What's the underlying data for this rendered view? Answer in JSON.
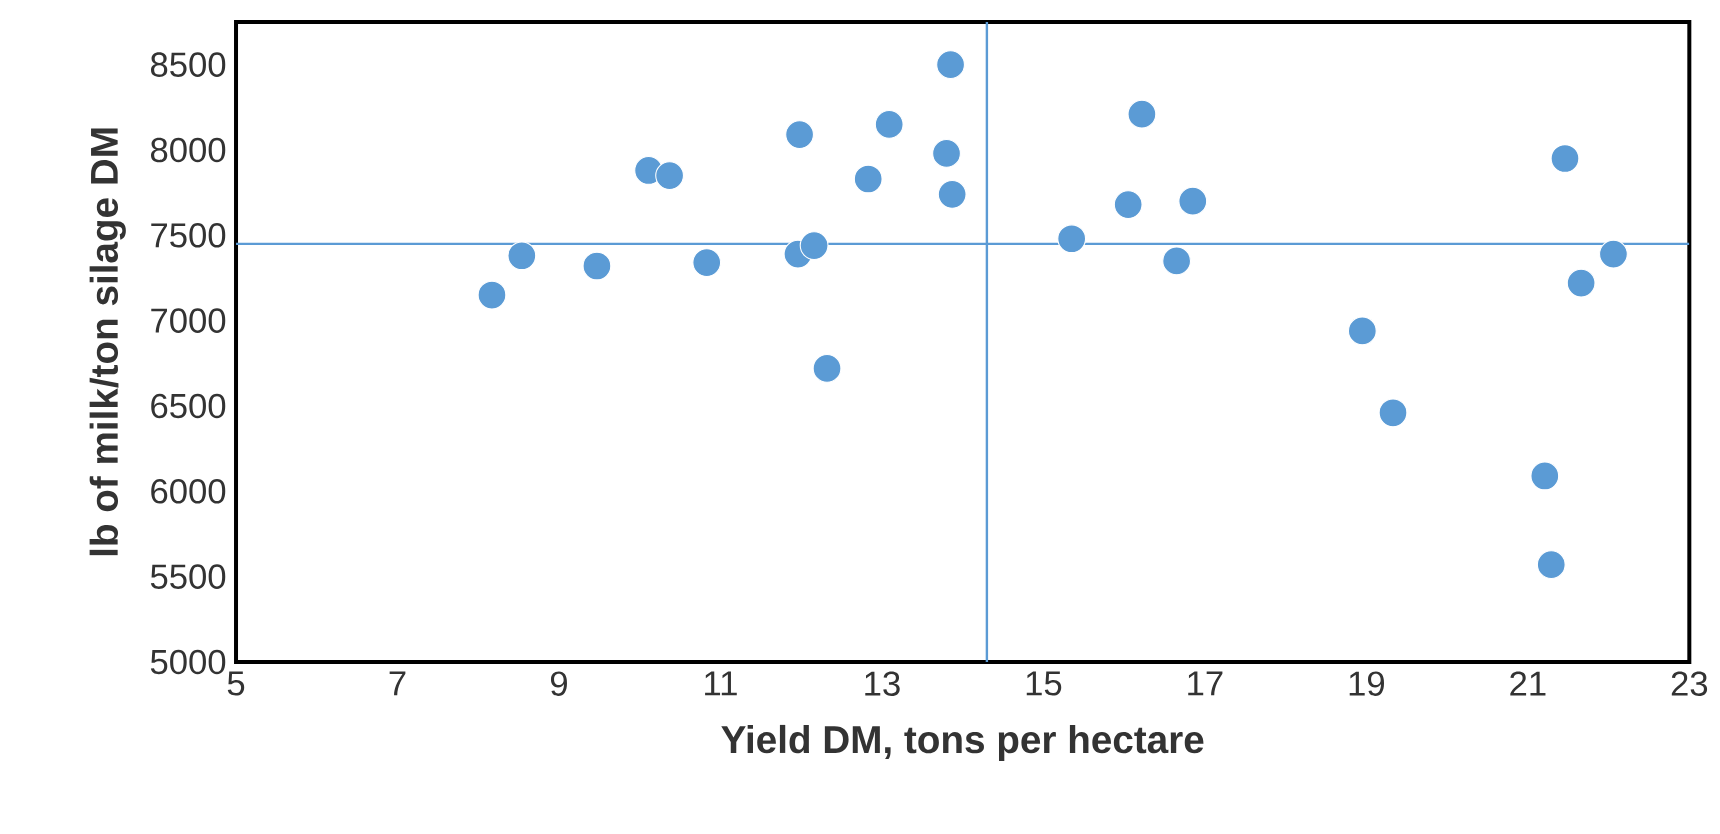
{
  "chart_data": {
    "type": "scatter",
    "xlabel": "Yield DM, tons per hectare",
    "ylabel": "lb of milk/ton silage DM",
    "x": [
      8.17,
      8.54,
      9.47,
      10.11,
      10.37,
      10.83,
      11.98,
      11.96,
      12.16,
      12.32,
      12.83,
      13.09,
      13.8,
      13.85,
      13.87,
      15.35,
      16.05,
      16.22,
      16.65,
      16.85,
      18.95,
      19.33,
      21.21,
      21.29,
      21.46,
      21.66,
      22.06
    ],
    "values": [
      7150,
      7380,
      7320,
      7880,
      7850,
      7340,
      8090,
      7390,
      7440,
      6720,
      7830,
      8150,
      7980,
      8500,
      7740,
      7480,
      7680,
      8210,
      7350,
      7700,
      6940,
      6460,
      6090,
      5570,
      7950,
      7220,
      7390
    ],
    "color": "#5b9bd5",
    "grid": false,
    "xlim": [
      5,
      23
    ],
    "ylim": [
      5000,
      8750
    ],
    "xticks": [
      5,
      7,
      9,
      11,
      13,
      15,
      17,
      19,
      21,
      23
    ],
    "yticks": [
      5000,
      5500,
      6000,
      6500,
      7000,
      7500,
      8000,
      8500
    ],
    "ref_lines": [
      {
        "axis": "y",
        "value": 7450,
        "color": "#5b9bd5"
      },
      {
        "axis": "x",
        "value": 14.3,
        "color": "#5b9bd5"
      }
    ]
  }
}
